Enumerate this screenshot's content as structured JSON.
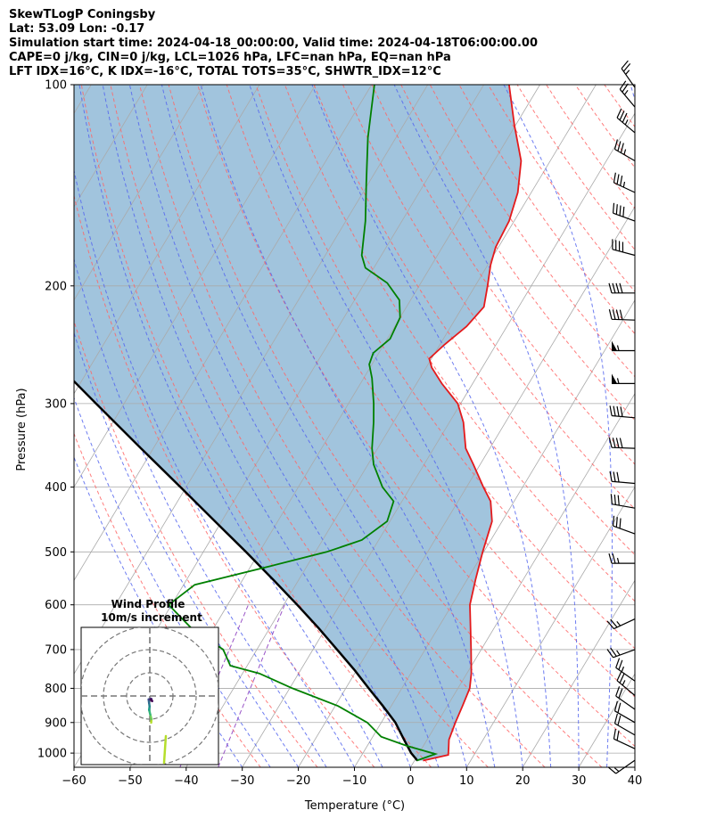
{
  "header": {
    "line1": "SkewTLogP Coningsby",
    "line2": "Lat: 53.09   Lon: -0.17",
    "line3": "Simulation start time: 2024-04-18_00:00:00, Valid time: 2024-04-18T06:00:00.00",
    "line4": "CAPE=0 j/kg, CIN=0 j/kg, LCL=1026 hPa, LFC=nan hPa, EQ=nan hPa",
    "line5": "LFT IDX=16°C, K IDX=-16°C, TOTAL TOTS=35°C, SHWTR_IDX=12°C"
  },
  "chart_data": {
    "type": "line",
    "subtype": "skew-T log-P diagram",
    "xlabel": "Temperature (°C)",
    "ylabel": "Pressure (hPa)",
    "x_ticks": [
      -60,
      -50,
      -40,
      -30,
      -20,
      -10,
      0,
      10,
      20,
      30,
      40
    ],
    "y_ticks": [
      100,
      200,
      300,
      400,
      500,
      600,
      700,
      800,
      900,
      1000
    ],
    "xlim": [
      -60,
      40
    ],
    "ylim": [
      1050,
      100
    ],
    "y_scale": "log",
    "grid": true,
    "colors": {
      "temperature": "#e41a1c",
      "dewpoint": "#008000",
      "parcel": "#000000",
      "cape_fill": "#a1c4dd",
      "dry_adiabats": "#ff6666",
      "moist_adiabats": "#5566ee",
      "isotherms": "#aaaaaa",
      "mixing_ratio": "#9a55c7"
    },
    "series": [
      {
        "key": "temperature",
        "points": [
          [
            1.5,
            1026
          ],
          [
            5.4,
            1006
          ],
          [
            4.8,
            985
          ],
          [
            3.9,
            955
          ],
          [
            3.2,
            900
          ],
          [
            2.7,
            850
          ],
          [
            2.1,
            800
          ],
          [
            0.8,
            760
          ],
          [
            -1.8,
            700
          ],
          [
            -4.2,
            650
          ],
          [
            -6.8,
            600
          ],
          [
            -8.5,
            550
          ],
          [
            -10.2,
            500
          ],
          [
            -11.8,
            450
          ],
          [
            -14.2,
            420
          ],
          [
            -17.0,
            400
          ],
          [
            -21.2,
            370
          ],
          [
            -24.3,
            350
          ],
          [
            -27.5,
            320
          ],
          [
            -30.5,
            300
          ],
          [
            -35.5,
            280
          ],
          [
            -39.0,
            265
          ],
          [
            -40.4,
            257
          ],
          [
            -39.2,
            245
          ],
          [
            -37.2,
            230
          ],
          [
            -36.2,
            215
          ],
          [
            -37.8,
            200
          ],
          [
            -39.5,
            186
          ],
          [
            -40.5,
            175
          ],
          [
            -40.9,
            160
          ],
          [
            -42.4,
            145
          ],
          [
            -45.2,
            130
          ],
          [
            -50.2,
            115
          ],
          [
            -55.5,
            100
          ]
        ]
      },
      {
        "key": "dewpoint",
        "points": [
          [
            0.4,
            1026
          ],
          [
            3.0,
            1003
          ],
          [
            -3.0,
            975
          ],
          [
            -8.5,
            945
          ],
          [
            -12.5,
            900
          ],
          [
            -19.5,
            850
          ],
          [
            -29.5,
            800
          ],
          [
            -37.0,
            760
          ],
          [
            -43.0,
            740
          ],
          [
            -46.0,
            700
          ],
          [
            -54.0,
            650
          ],
          [
            -60.5,
            600
          ],
          [
            -58.0,
            560
          ],
          [
            -46.5,
            525
          ],
          [
            -38.0,
            500
          ],
          [
            -33.0,
            480
          ],
          [
            -30.5,
            450
          ],
          [
            -31.5,
            420
          ],
          [
            -35.0,
            400
          ],
          [
            -39.0,
            370
          ],
          [
            -41.0,
            350
          ],
          [
            -43.5,
            320
          ],
          [
            -45.5,
            300
          ],
          [
            -48.5,
            275
          ],
          [
            -50.5,
            262
          ],
          [
            -51.0,
            252
          ],
          [
            -49.5,
            240
          ],
          [
            -50.0,
            223
          ],
          [
            -52.0,
            210
          ],
          [
            -56.0,
            198
          ],
          [
            -61.5,
            188
          ],
          [
            -63.5,
            180
          ],
          [
            -66.5,
            160
          ],
          [
            -70.5,
            140
          ],
          [
            -75.0,
            120
          ],
          [
            -79.5,
            100
          ]
        ]
      },
      {
        "key": "parcel",
        "points": [
          [
            0.5,
            1026
          ],
          [
            -1.4,
            1000
          ],
          [
            -4.4,
            950
          ],
          [
            -7.5,
            900
          ],
          [
            -11.5,
            850
          ],
          [
            -15.9,
            800
          ],
          [
            -20.5,
            750
          ],
          [
            -25.7,
            700
          ],
          [
            -31.3,
            650
          ],
          [
            -37.6,
            600
          ],
          [
            -44.6,
            550
          ],
          [
            -52.4,
            500
          ],
          [
            -61.2,
            450
          ],
          [
            -71.0,
            400
          ],
          [
            -82.2,
            350
          ],
          [
            -95.0,
            300
          ],
          [
            -110.0,
            250
          ],
          [
            -127.0,
            200
          ],
          [
            -148.0,
            150
          ],
          [
            -175.0,
            100
          ]
        ]
      }
    ],
    "wind_barbs": [
      {
        "p": 1025,
        "spd": 15,
        "dir": 235
      },
      {
        "p": 985,
        "spd": 20,
        "dir": 295
      },
      {
        "p": 940,
        "spd": 20,
        "dir": 300
      },
      {
        "p": 900,
        "spd": 20,
        "dir": 300
      },
      {
        "p": 860,
        "spd": 20,
        "dir": 305
      },
      {
        "p": 820,
        "spd": 25,
        "dir": 310
      },
      {
        "p": 780,
        "spd": 25,
        "dir": 305
      },
      {
        "p": 700,
        "spd": 25,
        "dir": 250
      },
      {
        "p": 630,
        "spd": 25,
        "dir": 245
      },
      {
        "p": 520,
        "spd": 25,
        "dir": 270
      },
      {
        "p": 470,
        "spd": 30,
        "dir": 290
      },
      {
        "p": 430,
        "spd": 30,
        "dir": 280
      },
      {
        "p": 395,
        "spd": 30,
        "dir": 275
      },
      {
        "p": 350,
        "spd": 40,
        "dir": 272
      },
      {
        "p": 315,
        "spd": 40,
        "dir": 275
      },
      {
        "p": 280,
        "spd": 55,
        "dir": 270
      },
      {
        "p": 250,
        "spd": 55,
        "dir": 270
      },
      {
        "p": 225,
        "spd": 40,
        "dir": 272
      },
      {
        "p": 205,
        "spd": 40,
        "dir": 270
      },
      {
        "p": 180,
        "spd": 40,
        "dir": 285
      },
      {
        "p": 160,
        "spd": 40,
        "dir": 290
      },
      {
        "p": 145,
        "spd": 35,
        "dir": 295
      },
      {
        "p": 130,
        "spd": 35,
        "dir": 300
      },
      {
        "p": 118,
        "spd": 35,
        "dir": 310
      },
      {
        "p": 108,
        "spd": 25,
        "dir": 320
      },
      {
        "p": 101,
        "spd": 25,
        "dir": 325
      }
    ],
    "inset": {
      "title": "Wind Profile",
      "subtitle": "10m/s increment",
      "rings_ms": [
        10,
        20,
        30
      ],
      "profile_uv": [
        [
          0.6,
          -11.5
        ],
        [
          0.7,
          -10.0
        ],
        [
          0.2,
          -8.0
        ],
        [
          -0.3,
          -6.0
        ],
        [
          -0.1,
          -4.5
        ],
        [
          -0.3,
          -3.0
        ],
        [
          -0.5,
          -1.5
        ],
        [
          0.6,
          -1.2
        ],
        [
          1.0,
          -2.2
        ],
        [
          0.3,
          -1.5
        ]
      ]
    }
  }
}
